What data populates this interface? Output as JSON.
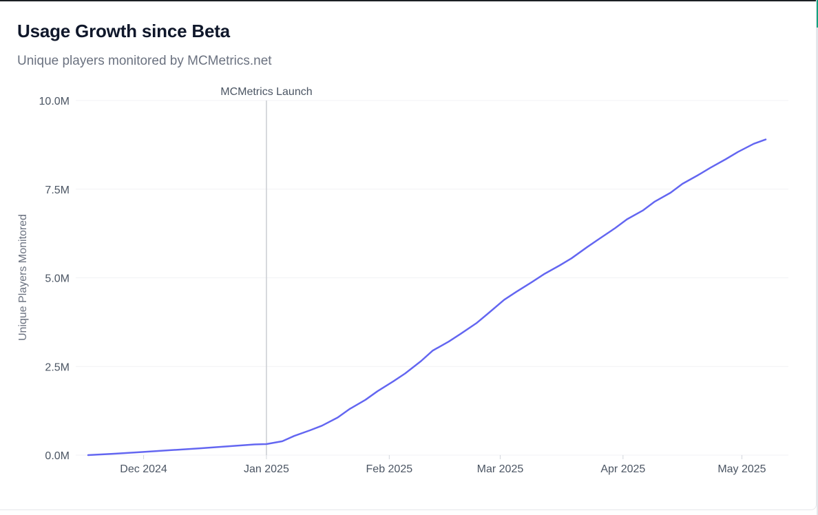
{
  "chart_data": {
    "type": "line",
    "title": "Usage Growth since Beta",
    "subtitle": "Unique players monitored by MCMetrics.net",
    "xlabel": "",
    "ylabel": "Unique Players Monitored",
    "ylim": [
      0,
      10000000
    ],
    "y_ticks": [
      {
        "value": 0,
        "label": "0.0M"
      },
      {
        "value": 2500000,
        "label": "2.5M"
      },
      {
        "value": 5000000,
        "label": "5.0M"
      },
      {
        "value": 7500000,
        "label": "7.5M"
      },
      {
        "value": 10000000,
        "label": "10.0M"
      }
    ],
    "xlim": [
      "2024-11-17",
      "2025-05-11"
    ],
    "x_ticks": [
      {
        "value": "2024-12-01",
        "label": "Dec 2024"
      },
      {
        "value": "2025-01-01",
        "label": "Jan 2025"
      },
      {
        "value": "2025-02-01",
        "label": "Feb 2025"
      },
      {
        "value": "2025-03-01",
        "label": "Mar 2025"
      },
      {
        "value": "2025-04-01",
        "label": "Apr 2025"
      },
      {
        "value": "2025-05-01",
        "label": "May 2025"
      }
    ],
    "grid": true,
    "annotations": [
      {
        "x": "2025-01-01",
        "label": "MCMetrics Launch"
      }
    ],
    "series": [
      {
        "color": "#6366f1",
        "x": [
          "2024-11-17",
          "2024-11-24",
          "2024-12-01",
          "2024-12-08",
          "2024-12-15",
          "2024-12-22",
          "2024-12-29",
          "2025-01-01",
          "2025-01-05",
          "2025-01-08",
          "2025-01-12",
          "2025-01-15",
          "2025-01-19",
          "2025-01-22",
          "2025-01-26",
          "2025-01-29",
          "2025-02-02",
          "2025-02-05",
          "2025-02-09",
          "2025-02-12",
          "2025-02-16",
          "2025-02-19",
          "2025-02-23",
          "2025-02-26",
          "2025-03-02",
          "2025-03-05",
          "2025-03-09",
          "2025-03-12",
          "2025-03-16",
          "2025-03-19",
          "2025-03-23",
          "2025-03-26",
          "2025-03-30",
          "2025-04-02",
          "2025-04-06",
          "2025-04-09",
          "2025-04-13",
          "2025-04-16",
          "2025-04-20",
          "2025-04-23",
          "2025-04-27",
          "2025-04-30",
          "2025-05-04",
          "2025-05-07"
        ],
        "y": [
          0,
          40000,
          90000,
          140000,
          190000,
          245000,
          300000,
          310000,
          390000,
          540000,
          700000,
          830000,
          1060000,
          1300000,
          1560000,
          1800000,
          2080000,
          2300000,
          2650000,
          2950000,
          3200000,
          3420000,
          3720000,
          4000000,
          4380000,
          4600000,
          4880000,
          5100000,
          5350000,
          5550000,
          5870000,
          6100000,
          6400000,
          6650000,
          6900000,
          7150000,
          7400000,
          7650000,
          7900000,
          8100000,
          8350000,
          8550000,
          8780000,
          8900000
        ]
      }
    ]
  }
}
